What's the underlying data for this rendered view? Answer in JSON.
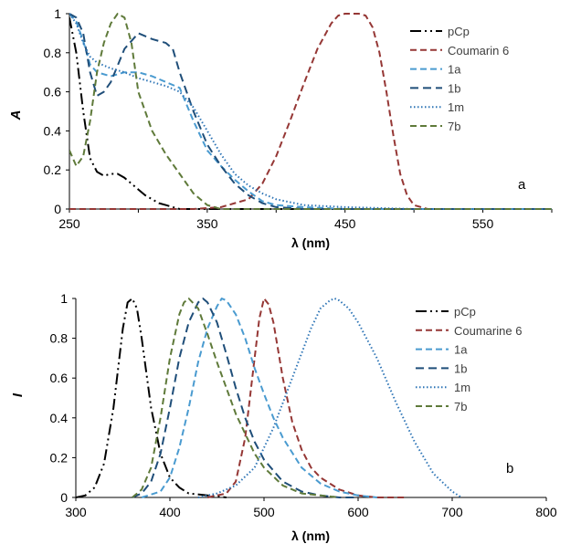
{
  "chart_data": [
    {
      "type": "line",
      "panel_label": "a",
      "xlabel": "λ (nm)",
      "ylabel": "A",
      "xlim": [
        250,
        600
      ],
      "ylim": [
        0,
        1
      ],
      "xticks": [
        250,
        350,
        450,
        550
      ],
      "yticks": [
        0,
        0.2,
        0.4,
        0.6,
        0.8,
        1
      ],
      "legend": "top-right",
      "grid": false,
      "series": [
        {
          "name": "pCp",
          "color": "#000000",
          "dash": "dashdotdot",
          "x": [
            250,
            255,
            260,
            265,
            270,
            275,
            280,
            285,
            290,
            295,
            300,
            305,
            310,
            315,
            320,
            325,
            330,
            340,
            600
          ],
          "y": [
            0.98,
            0.8,
            0.5,
            0.26,
            0.19,
            0.17,
            0.18,
            0.18,
            0.16,
            0.13,
            0.1,
            0.07,
            0.05,
            0.03,
            0.02,
            0.01,
            0.0,
            0.0,
            0.0
          ]
        },
        {
          "name": "Coumarin 6",
          "color": "#953735",
          "dash": "dash",
          "x": [
            250,
            340,
            360,
            380,
            390,
            400,
            410,
            420,
            430,
            440,
            445,
            450,
            460,
            465,
            470,
            475,
            480,
            485,
            490,
            495,
            500,
            510,
            600
          ],
          "y": [
            0,
            0,
            0.01,
            0.05,
            0.13,
            0.27,
            0.45,
            0.64,
            0.82,
            0.95,
            0.99,
            1.0,
            1.0,
            0.99,
            0.93,
            0.8,
            0.6,
            0.38,
            0.18,
            0.07,
            0.02,
            0.0,
            0.0
          ]
        },
        {
          "name": "1a",
          "color": "#4a9bd0",
          "dash": "dash",
          "x": [
            250,
            255,
            260,
            265,
            270,
            280,
            290,
            300,
            310,
            320,
            330,
            340,
            350,
            360,
            370,
            380,
            390,
            400,
            420,
            450,
            600
          ],
          "y": [
            1.0,
            0.96,
            0.86,
            0.74,
            0.7,
            0.68,
            0.7,
            0.7,
            0.68,
            0.65,
            0.62,
            0.45,
            0.3,
            0.22,
            0.15,
            0.09,
            0.04,
            0.02,
            0.01,
            0.0,
            0.0
          ]
        },
        {
          "name": "1b",
          "color": "#1f4e79",
          "dash": "longdash",
          "x": [
            250,
            255,
            260,
            265,
            270,
            275,
            280,
            290,
            300,
            310,
            320,
            325,
            330,
            340,
            350,
            360,
            370,
            380,
            390,
            400,
            420,
            450,
            600
          ],
          "y": [
            1.0,
            0.98,
            0.9,
            0.7,
            0.58,
            0.6,
            0.65,
            0.82,
            0.9,
            0.87,
            0.85,
            0.82,
            0.7,
            0.5,
            0.33,
            0.22,
            0.13,
            0.07,
            0.03,
            0.01,
            0.0,
            0.0,
            0.0
          ]
        },
        {
          "name": "1m",
          "color": "#2e75b6",
          "dash": "dot",
          "x": [
            250,
            255,
            260,
            265,
            270,
            280,
            290,
            300,
            310,
            320,
            330,
            340,
            350,
            360,
            370,
            380,
            390,
            400,
            420,
            450,
            500,
            600
          ],
          "y": [
            1.0,
            0.95,
            0.85,
            0.78,
            0.75,
            0.72,
            0.7,
            0.67,
            0.65,
            0.63,
            0.6,
            0.52,
            0.4,
            0.28,
            0.18,
            0.12,
            0.08,
            0.05,
            0.02,
            0.01,
            0.0,
            0.0
          ]
        },
        {
          "name": "7b",
          "color": "#5f7a3a",
          "dash": "dash",
          "x": [
            250,
            255,
            260,
            265,
            270,
            275,
            280,
            285,
            290,
            295,
            300,
            310,
            320,
            330,
            340,
            350,
            360,
            600
          ],
          "y": [
            0.3,
            0.22,
            0.27,
            0.45,
            0.7,
            0.85,
            0.95,
            1.0,
            0.98,
            0.85,
            0.6,
            0.4,
            0.28,
            0.18,
            0.08,
            0.02,
            0.0,
            0.0
          ]
        }
      ]
    },
    {
      "type": "line",
      "panel_label": "b",
      "xlabel": "λ (nm)",
      "ylabel": "I",
      "xlim": [
        300,
        800
      ],
      "ylim": [
        0,
        1
      ],
      "xticks": [
        300,
        400,
        500,
        600,
        700,
        800
      ],
      "yticks": [
        0,
        0.2,
        0.4,
        0.6,
        0.8,
        1
      ],
      "legend": "top-right",
      "grid": false,
      "series": [
        {
          "name": "pCp",
          "color": "#000000",
          "dash": "dashdotdot",
          "x": [
            300,
            310,
            320,
            330,
            340,
            350,
            355,
            360,
            365,
            370,
            380,
            390,
            400,
            410,
            420,
            440,
            460
          ],
          "y": [
            0.0,
            0.01,
            0.05,
            0.17,
            0.45,
            0.85,
            0.98,
            1.0,
            0.95,
            0.8,
            0.45,
            0.22,
            0.1,
            0.05,
            0.02,
            0.01,
            0.0
          ]
        },
        {
          "name": "Coumarine 6",
          "color": "#953735",
          "dash": "dash",
          "x": [
            440,
            460,
            470,
            480,
            490,
            495,
            500,
            505,
            510,
            520,
            530,
            540,
            550,
            560,
            580,
            600,
            620,
            650
          ],
          "y": [
            0.0,
            0.02,
            0.08,
            0.3,
            0.7,
            0.9,
            1.0,
            0.97,
            0.88,
            0.6,
            0.38,
            0.24,
            0.15,
            0.1,
            0.04,
            0.01,
            0.0,
            0.0
          ]
        },
        {
          "name": "1a",
          "color": "#4a9bd0",
          "dash": "dash",
          "x": [
            370,
            390,
            400,
            410,
            420,
            430,
            440,
            450,
            455,
            460,
            470,
            480,
            490,
            500,
            510,
            520,
            540,
            560,
            580,
            600,
            620
          ],
          "y": [
            0.0,
            0.03,
            0.1,
            0.25,
            0.45,
            0.68,
            0.85,
            0.96,
            1.0,
            0.99,
            0.92,
            0.8,
            0.65,
            0.52,
            0.4,
            0.3,
            0.15,
            0.07,
            0.03,
            0.01,
            0.0
          ]
        },
        {
          "name": "1b",
          "color": "#1f4e79",
          "dash": "longdash",
          "x": [
            360,
            370,
            380,
            390,
            400,
            410,
            420,
            430,
            435,
            440,
            450,
            460,
            470,
            480,
            490,
            500,
            520,
            540,
            560,
            580,
            600
          ],
          "y": [
            0.0,
            0.02,
            0.08,
            0.22,
            0.45,
            0.7,
            0.88,
            0.98,
            1.0,
            0.98,
            0.88,
            0.72,
            0.55,
            0.4,
            0.28,
            0.19,
            0.08,
            0.03,
            0.01,
            0.0,
            0.0
          ]
        },
        {
          "name": "1m",
          "color": "#2e75b6",
          "dash": "dot",
          "x": [
            430,
            450,
            470,
            490,
            510,
            530,
            550,
            560,
            570,
            575,
            580,
            590,
            600,
            620,
            640,
            660,
            680,
            700,
            710
          ],
          "y": [
            0.0,
            0.02,
            0.06,
            0.15,
            0.35,
            0.6,
            0.85,
            0.95,
            0.99,
            1.0,
            0.99,
            0.95,
            0.88,
            0.7,
            0.48,
            0.28,
            0.12,
            0.03,
            0.0
          ]
        },
        {
          "name": "7b",
          "color": "#5f7a3a",
          "dash": "dash",
          "x": [
            360,
            370,
            380,
            390,
            400,
            410,
            415,
            420,
            430,
            440,
            450,
            460,
            470,
            480,
            490,
            500,
            520,
            540,
            560,
            580
          ],
          "y": [
            0.0,
            0.04,
            0.15,
            0.4,
            0.7,
            0.92,
            0.98,
            1.0,
            0.95,
            0.82,
            0.68,
            0.55,
            0.42,
            0.32,
            0.22,
            0.15,
            0.06,
            0.02,
            0.01,
            0.0
          ]
        }
      ]
    }
  ]
}
